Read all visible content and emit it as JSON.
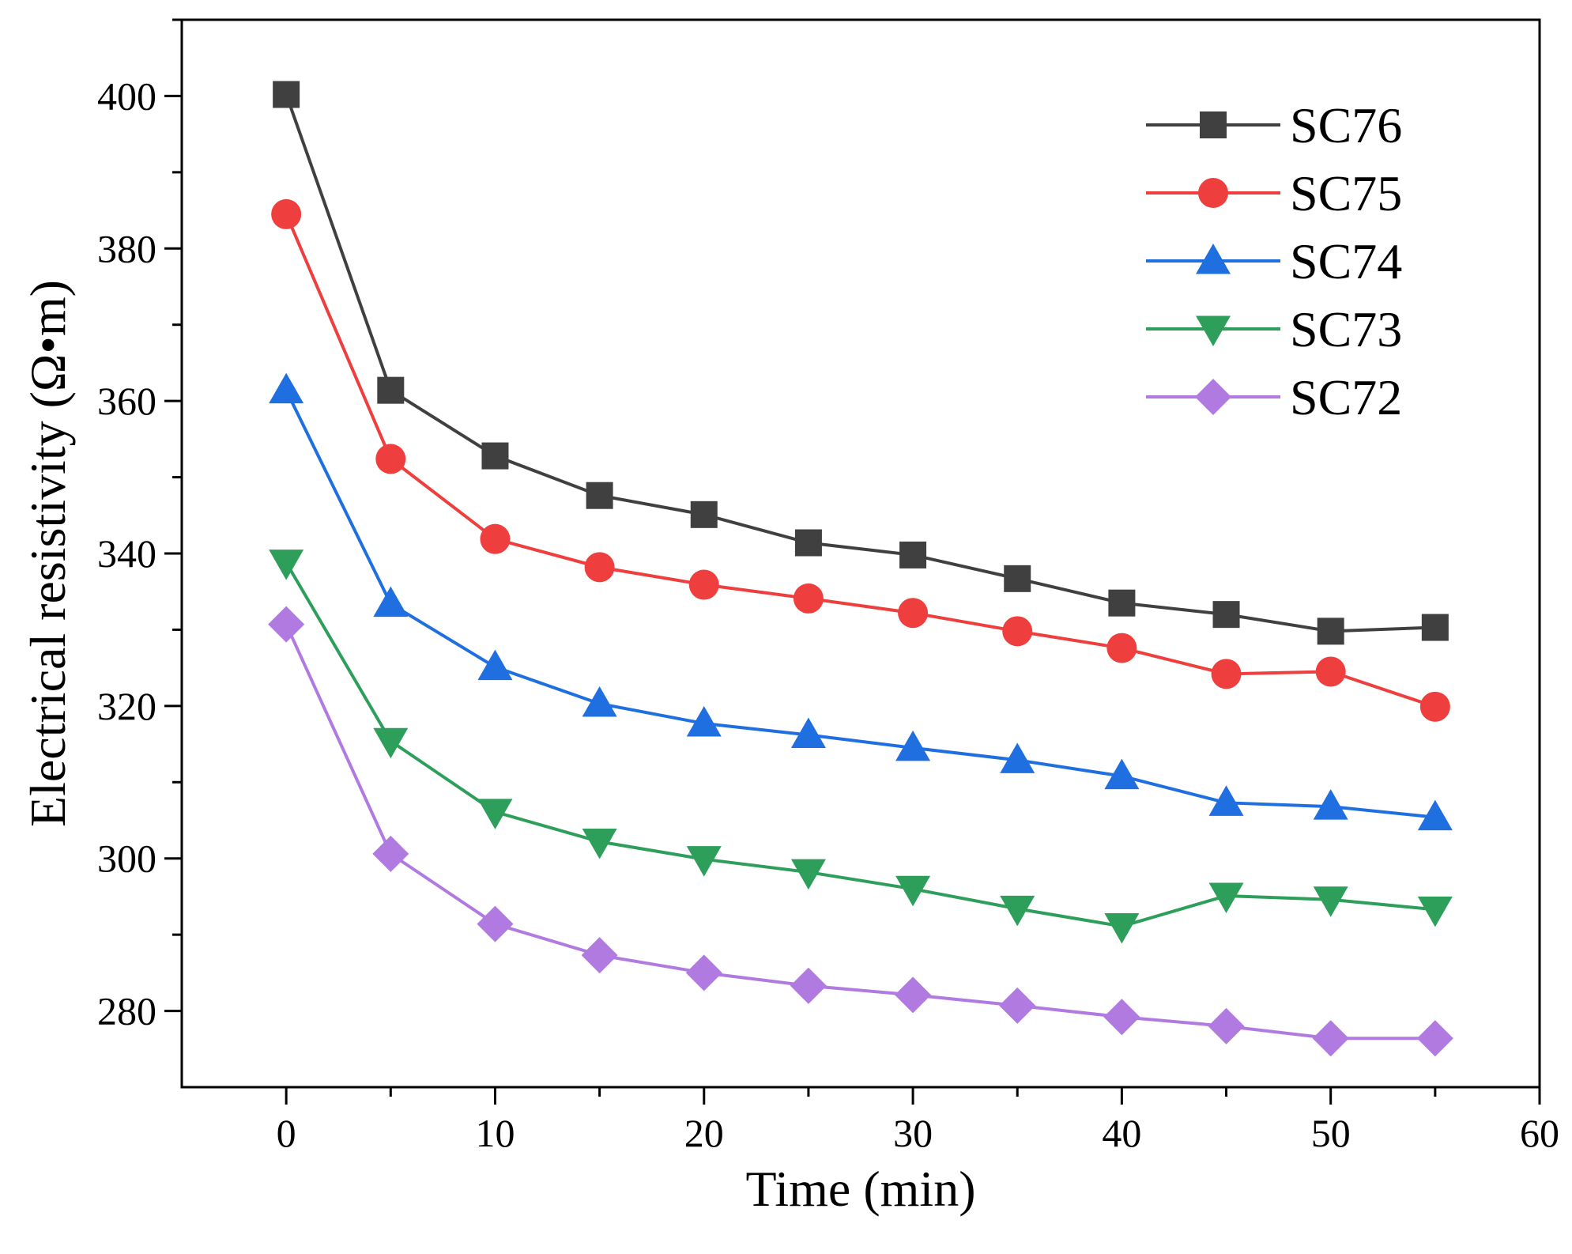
{
  "chart_data": {
    "type": "line",
    "title": "",
    "xlabel": "Time (min)",
    "ylabel": "Electrical resistivity (Ω•m)",
    "xlim": [
      -5,
      60
    ],
    "ylim": [
      270,
      410
    ],
    "xticks": [
      0,
      10,
      20,
      30,
      40,
      50,
      60
    ],
    "yticks": [
      280,
      300,
      320,
      340,
      360,
      380,
      400
    ],
    "xtick_labels": [
      "0",
      "10",
      "20",
      "30",
      "40",
      "50",
      "60"
    ],
    "ytick_labels": [
      "280",
      "300",
      "320",
      "340",
      "360",
      "380",
      "400"
    ],
    "grid": false,
    "legend_position": "top-right",
    "x": [
      0,
      5,
      10,
      15,
      20,
      25,
      30,
      35,
      40,
      45,
      50,
      55
    ],
    "series": [
      {
        "name": "SC76",
        "marker": "square",
        "color": "#404040",
        "values": [
          400.2,
          361.4,
          352.8,
          347.6,
          345.1,
          341.4,
          339.8,
          336.7,
          333.5,
          332.0,
          329.8,
          330.3
        ]
      },
      {
        "name": "SC75",
        "marker": "circle",
        "color": "#ee3e3e",
        "values": [
          384.5,
          352.4,
          341.9,
          338.2,
          335.9,
          334.1,
          332.2,
          329.8,
          327.6,
          324.2,
          324.5,
          319.9
        ]
      },
      {
        "name": "SC74",
        "marker": "triangle-up",
        "color": "#1f6fe0",
        "values": [
          361.4,
          333.4,
          325.1,
          320.3,
          317.7,
          316.2,
          314.5,
          312.9,
          310.8,
          307.3,
          306.8,
          305.4
        ]
      },
      {
        "name": "SC73",
        "marker": "triangle-down",
        "color": "#2e9e5b",
        "values": [
          338.8,
          315.4,
          306.1,
          302.2,
          299.9,
          298.2,
          296.0,
          293.4,
          291.1,
          295.1,
          294.6,
          293.3
        ]
      },
      {
        "name": "SC72",
        "marker": "diamond",
        "color": "#b07ae0",
        "values": [
          330.7,
          300.6,
          291.4,
          287.3,
          285.0,
          283.3,
          282.1,
          280.7,
          279.2,
          278.0,
          276.4,
          276.4
        ]
      }
    ]
  }
}
